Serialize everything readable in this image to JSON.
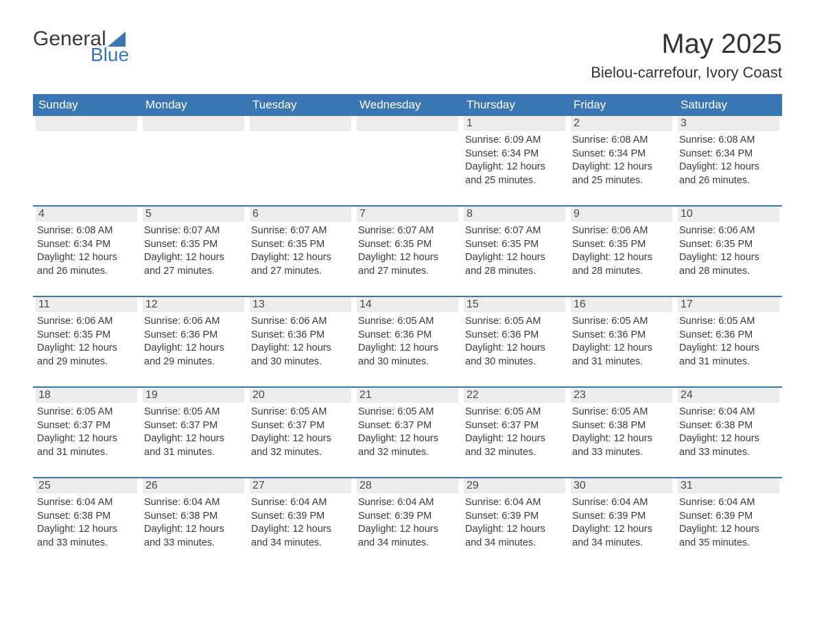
{
  "logo": {
    "text1": "General",
    "text2": "Blue",
    "triangle_color": "#3a76b4"
  },
  "title": "May 2025",
  "location": "Bielou-carrefour, Ivory Coast",
  "colors": {
    "header_bg": "#3a76b4",
    "header_text": "#ffffff",
    "daynum_bg": "#ececec",
    "body_text": "#3b3b3b",
    "week_border": "#3a76b4"
  },
  "weekdays": [
    "Sunday",
    "Monday",
    "Tuesday",
    "Wednesday",
    "Thursday",
    "Friday",
    "Saturday"
  ],
  "weeks": [
    [
      {
        "day": "",
        "sunrise": "",
        "sunset": "",
        "daylight": ""
      },
      {
        "day": "",
        "sunrise": "",
        "sunset": "",
        "daylight": ""
      },
      {
        "day": "",
        "sunrise": "",
        "sunset": "",
        "daylight": ""
      },
      {
        "day": "",
        "sunrise": "",
        "sunset": "",
        "daylight": ""
      },
      {
        "day": "1",
        "sunrise": "Sunrise: 6:09 AM",
        "sunset": "Sunset: 6:34 PM",
        "daylight": "Daylight: 12 hours and 25 minutes."
      },
      {
        "day": "2",
        "sunrise": "Sunrise: 6:08 AM",
        "sunset": "Sunset: 6:34 PM",
        "daylight": "Daylight: 12 hours and 25 minutes."
      },
      {
        "day": "3",
        "sunrise": "Sunrise: 6:08 AM",
        "sunset": "Sunset: 6:34 PM",
        "daylight": "Daylight: 12 hours and 26 minutes."
      }
    ],
    [
      {
        "day": "4",
        "sunrise": "Sunrise: 6:08 AM",
        "sunset": "Sunset: 6:34 PM",
        "daylight": "Daylight: 12 hours and 26 minutes."
      },
      {
        "day": "5",
        "sunrise": "Sunrise: 6:07 AM",
        "sunset": "Sunset: 6:35 PM",
        "daylight": "Daylight: 12 hours and 27 minutes."
      },
      {
        "day": "6",
        "sunrise": "Sunrise: 6:07 AM",
        "sunset": "Sunset: 6:35 PM",
        "daylight": "Daylight: 12 hours and 27 minutes."
      },
      {
        "day": "7",
        "sunrise": "Sunrise: 6:07 AM",
        "sunset": "Sunset: 6:35 PM",
        "daylight": "Daylight: 12 hours and 27 minutes."
      },
      {
        "day": "8",
        "sunrise": "Sunrise: 6:07 AM",
        "sunset": "Sunset: 6:35 PM",
        "daylight": "Daylight: 12 hours and 28 minutes."
      },
      {
        "day": "9",
        "sunrise": "Sunrise: 6:06 AM",
        "sunset": "Sunset: 6:35 PM",
        "daylight": "Daylight: 12 hours and 28 minutes."
      },
      {
        "day": "10",
        "sunrise": "Sunrise: 6:06 AM",
        "sunset": "Sunset: 6:35 PM",
        "daylight": "Daylight: 12 hours and 28 minutes."
      }
    ],
    [
      {
        "day": "11",
        "sunrise": "Sunrise: 6:06 AM",
        "sunset": "Sunset: 6:35 PM",
        "daylight": "Daylight: 12 hours and 29 minutes."
      },
      {
        "day": "12",
        "sunrise": "Sunrise: 6:06 AM",
        "sunset": "Sunset: 6:36 PM",
        "daylight": "Daylight: 12 hours and 29 minutes."
      },
      {
        "day": "13",
        "sunrise": "Sunrise: 6:06 AM",
        "sunset": "Sunset: 6:36 PM",
        "daylight": "Daylight: 12 hours and 30 minutes."
      },
      {
        "day": "14",
        "sunrise": "Sunrise: 6:05 AM",
        "sunset": "Sunset: 6:36 PM",
        "daylight": "Daylight: 12 hours and 30 minutes."
      },
      {
        "day": "15",
        "sunrise": "Sunrise: 6:05 AM",
        "sunset": "Sunset: 6:36 PM",
        "daylight": "Daylight: 12 hours and 30 minutes."
      },
      {
        "day": "16",
        "sunrise": "Sunrise: 6:05 AM",
        "sunset": "Sunset: 6:36 PM",
        "daylight": "Daylight: 12 hours and 31 minutes."
      },
      {
        "day": "17",
        "sunrise": "Sunrise: 6:05 AM",
        "sunset": "Sunset: 6:36 PM",
        "daylight": "Daylight: 12 hours and 31 minutes."
      }
    ],
    [
      {
        "day": "18",
        "sunrise": "Sunrise: 6:05 AM",
        "sunset": "Sunset: 6:37 PM",
        "daylight": "Daylight: 12 hours and 31 minutes."
      },
      {
        "day": "19",
        "sunrise": "Sunrise: 6:05 AM",
        "sunset": "Sunset: 6:37 PM",
        "daylight": "Daylight: 12 hours and 31 minutes."
      },
      {
        "day": "20",
        "sunrise": "Sunrise: 6:05 AM",
        "sunset": "Sunset: 6:37 PM",
        "daylight": "Daylight: 12 hours and 32 minutes."
      },
      {
        "day": "21",
        "sunrise": "Sunrise: 6:05 AM",
        "sunset": "Sunset: 6:37 PM",
        "daylight": "Daylight: 12 hours and 32 minutes."
      },
      {
        "day": "22",
        "sunrise": "Sunrise: 6:05 AM",
        "sunset": "Sunset: 6:37 PM",
        "daylight": "Daylight: 12 hours and 32 minutes."
      },
      {
        "day": "23",
        "sunrise": "Sunrise: 6:05 AM",
        "sunset": "Sunset: 6:38 PM",
        "daylight": "Daylight: 12 hours and 33 minutes."
      },
      {
        "day": "24",
        "sunrise": "Sunrise: 6:04 AM",
        "sunset": "Sunset: 6:38 PM",
        "daylight": "Daylight: 12 hours and 33 minutes."
      }
    ],
    [
      {
        "day": "25",
        "sunrise": "Sunrise: 6:04 AM",
        "sunset": "Sunset: 6:38 PM",
        "daylight": "Daylight: 12 hours and 33 minutes."
      },
      {
        "day": "26",
        "sunrise": "Sunrise: 6:04 AM",
        "sunset": "Sunset: 6:38 PM",
        "daylight": "Daylight: 12 hours and 33 minutes."
      },
      {
        "day": "27",
        "sunrise": "Sunrise: 6:04 AM",
        "sunset": "Sunset: 6:39 PM",
        "daylight": "Daylight: 12 hours and 34 minutes."
      },
      {
        "day": "28",
        "sunrise": "Sunrise: 6:04 AM",
        "sunset": "Sunset: 6:39 PM",
        "daylight": "Daylight: 12 hours and 34 minutes."
      },
      {
        "day": "29",
        "sunrise": "Sunrise: 6:04 AM",
        "sunset": "Sunset: 6:39 PM",
        "daylight": "Daylight: 12 hours and 34 minutes."
      },
      {
        "day": "30",
        "sunrise": "Sunrise: 6:04 AM",
        "sunset": "Sunset: 6:39 PM",
        "daylight": "Daylight: 12 hours and 34 minutes."
      },
      {
        "day": "31",
        "sunrise": "Sunrise: 6:04 AM",
        "sunset": "Sunset: 6:39 PM",
        "daylight": "Daylight: 12 hours and 35 minutes."
      }
    ]
  ]
}
